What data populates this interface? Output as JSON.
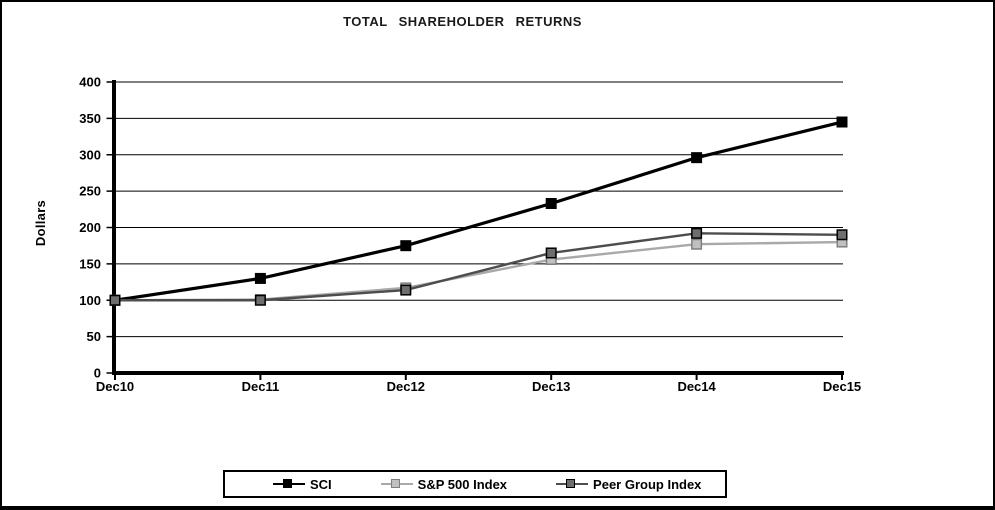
{
  "window": {
    "background": "#ffffff",
    "frame_border_color": "#000000"
  },
  "chart_data": {
    "type": "line",
    "title": "TOTAL SHAREHOLDER RETURNS",
    "xlabel": "",
    "ylabel": "Dollars",
    "categories": [
      "Dec10",
      "Dec11",
      "Dec12",
      "Dec13",
      "Dec14",
      "Dec15"
    ],
    "y_ticks": [
      400,
      350,
      300,
      250,
      200,
      150,
      100,
      50,
      0
    ],
    "ylim": [
      0,
      400
    ],
    "grid": "horizontal",
    "gridline_color": "#000000",
    "legend_position": "bottom",
    "marker_shape": "square",
    "series": [
      {
        "name": "SCI",
        "values": [
          100,
          130,
          175,
          233,
          296,
          345
        ],
        "line_color": "#000000",
        "marker_fill": "#000000",
        "marker_stroke": "#000000",
        "line_width": 3.2
      },
      {
        "name": "S&P 500 Index",
        "values": [
          100,
          101,
          117,
          156,
          177,
          180
        ],
        "line_color": "#a9a9a9",
        "marker_fill": "#c0c0c0",
        "marker_stroke": "#7f7f7f",
        "line_width": 2.4
      },
      {
        "name": "Peer Group Index",
        "values": [
          100,
          100,
          114,
          165,
          192,
          190
        ],
        "line_color": "#4d4d4d",
        "marker_fill": "#6e6e6e",
        "marker_stroke": "#000000",
        "line_width": 2.4
      }
    ]
  }
}
